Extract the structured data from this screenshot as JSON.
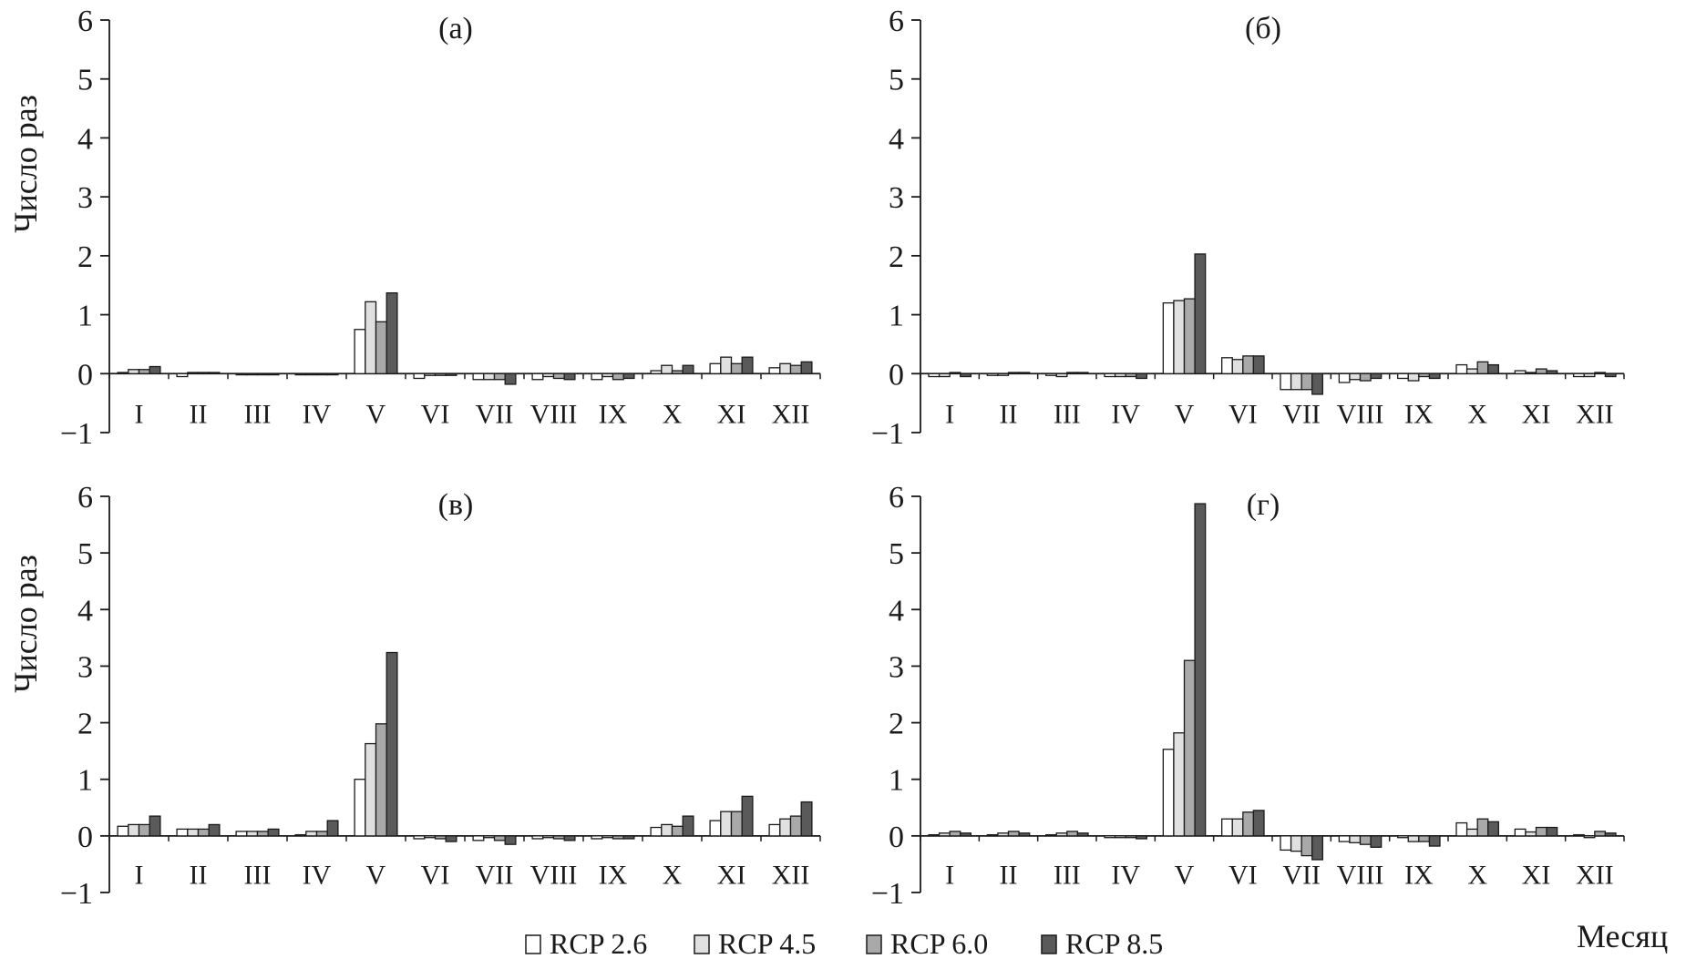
{
  "figure": {
    "ylabel": "Число раз",
    "xlabel": "Месяц"
  },
  "legend": [
    {
      "label": "RCP 2.6",
      "color": "#ffffff"
    },
    {
      "label": "RCP 4.5",
      "color": "#e0e0e0"
    },
    {
      "label": "RCP 6.0",
      "color": "#a9a9a9"
    },
    {
      "label": "RCP 8.5",
      "color": "#5a5a5a"
    }
  ],
  "chart_data": [
    {
      "type": "bar",
      "title": "(а)",
      "ylabel": "Число раз",
      "xlabel": "",
      "ylim": [
        -1,
        6
      ],
      "yticks": [
        -1,
        0,
        1,
        2,
        3,
        4,
        5,
        6
      ],
      "categories": [
        "I",
        "II",
        "III",
        "IV",
        "V",
        "VI",
        "VII",
        "VIII",
        "IX",
        "X",
        "XI",
        "XII"
      ],
      "series": [
        {
          "name": "RCP 2.6",
          "values": [
            0.02,
            -0.05,
            -0.02,
            -0.02,
            0.75,
            -0.08,
            -0.1,
            -0.1,
            -0.1,
            0.05,
            0.17,
            0.1
          ]
        },
        {
          "name": "RCP 4.5",
          "values": [
            0.07,
            0.02,
            -0.02,
            -0.02,
            1.22,
            -0.03,
            -0.1,
            -0.05,
            -0.05,
            0.14,
            0.28,
            0.17
          ]
        },
        {
          "name": "RCP 6.0",
          "values": [
            0.07,
            0.02,
            -0.02,
            -0.02,
            0.88,
            -0.03,
            -0.1,
            -0.08,
            -0.1,
            0.05,
            0.17,
            0.14
          ]
        },
        {
          "name": "RCP 8.5",
          "values": [
            0.12,
            0.02,
            -0.02,
            -0.02,
            1.37,
            -0.03,
            -0.18,
            -0.1,
            -0.08,
            0.14,
            0.28,
            0.2
          ]
        }
      ]
    },
    {
      "type": "bar",
      "title": "(б)",
      "ylabel": "",
      "xlabel": "",
      "ylim": [
        -1,
        6
      ],
      "yticks": [
        -1,
        0,
        1,
        2,
        3,
        4,
        5,
        6
      ],
      "categories": [
        "I",
        "II",
        "III",
        "IV",
        "V",
        "VI",
        "VII",
        "VIII",
        "IX",
        "X",
        "XI",
        "XII"
      ],
      "series": [
        {
          "name": "RCP 2.6",
          "values": [
            -0.05,
            -0.03,
            -0.03,
            -0.05,
            1.2,
            0.27,
            -0.27,
            -0.15,
            -0.08,
            0.15,
            0.05,
            -0.05
          ]
        },
        {
          "name": "RCP 4.5",
          "values": [
            -0.05,
            -0.03,
            -0.05,
            -0.05,
            1.24,
            0.24,
            -0.27,
            -0.1,
            -0.12,
            0.08,
            0.02,
            -0.05
          ]
        },
        {
          "name": "RCP 6.0",
          "values": [
            0.02,
            0.02,
            0.02,
            -0.05,
            1.27,
            0.3,
            -0.27,
            -0.12,
            -0.05,
            0.2,
            0.08,
            0.02
          ]
        },
        {
          "name": "RCP 8.5",
          "values": [
            -0.05,
            0.02,
            0.02,
            -0.08,
            2.03,
            0.3,
            -0.35,
            -0.08,
            -0.08,
            0.15,
            0.05,
            -0.05
          ]
        }
      ]
    },
    {
      "type": "bar",
      "title": "(в)",
      "ylabel": "Число раз",
      "xlabel": "",
      "ylim": [
        -1,
        6
      ],
      "yticks": [
        -1,
        0,
        1,
        2,
        3,
        4,
        5,
        6
      ],
      "categories": [
        "I",
        "II",
        "III",
        "IV",
        "V",
        "VI",
        "VII",
        "VIII",
        "IX",
        "X",
        "XI",
        "XII"
      ],
      "series": [
        {
          "name": "RCP 2.6",
          "values": [
            0.17,
            0.12,
            0.08,
            0.02,
            1.0,
            -0.05,
            -0.08,
            -0.05,
            -0.05,
            0.15,
            0.27,
            0.2
          ]
        },
        {
          "name": "RCP 4.5",
          "values": [
            0.2,
            0.12,
            0.08,
            0.08,
            1.63,
            -0.03,
            -0.03,
            -0.03,
            -0.03,
            0.2,
            0.43,
            0.3
          ]
        },
        {
          "name": "RCP 6.0",
          "values": [
            0.2,
            0.12,
            0.08,
            0.08,
            1.98,
            -0.05,
            -0.08,
            -0.05,
            -0.05,
            0.17,
            0.43,
            0.35
          ]
        },
        {
          "name": "RCP 8.5",
          "values": [
            0.35,
            0.2,
            0.12,
            0.27,
            3.24,
            -0.1,
            -0.15,
            -0.08,
            -0.05,
            0.35,
            0.7,
            0.6
          ]
        }
      ]
    },
    {
      "type": "bar",
      "title": "(г)",
      "ylabel": "",
      "xlabel": "Месяц",
      "ylim": [
        -1,
        6
      ],
      "yticks": [
        -1,
        0,
        1,
        2,
        3,
        4,
        5,
        6
      ],
      "categories": [
        "I",
        "II",
        "III",
        "IV",
        "V",
        "VI",
        "VII",
        "VIII",
        "IX",
        "X",
        "XI",
        "XII"
      ],
      "series": [
        {
          "name": "RCP 2.6",
          "values": [
            0.02,
            0.02,
            0.02,
            -0.03,
            1.53,
            0.3,
            -0.25,
            -0.1,
            -0.03,
            0.23,
            0.12,
            0.02
          ]
        },
        {
          "name": "RCP 4.5",
          "values": [
            0.05,
            0.05,
            0.05,
            -0.03,
            1.82,
            0.3,
            -0.27,
            -0.12,
            -0.1,
            0.12,
            0.07,
            -0.03
          ]
        },
        {
          "name": "RCP 6.0",
          "values": [
            0.08,
            0.08,
            0.08,
            -0.03,
            3.1,
            0.42,
            -0.35,
            -0.15,
            -0.1,
            0.3,
            0.15,
            0.08
          ]
        },
        {
          "name": "RCP 8.5",
          "values": [
            0.05,
            0.05,
            0.05,
            -0.05,
            5.87,
            0.45,
            -0.42,
            -0.2,
            -0.18,
            0.25,
            0.15,
            0.05
          ]
        }
      ]
    }
  ]
}
